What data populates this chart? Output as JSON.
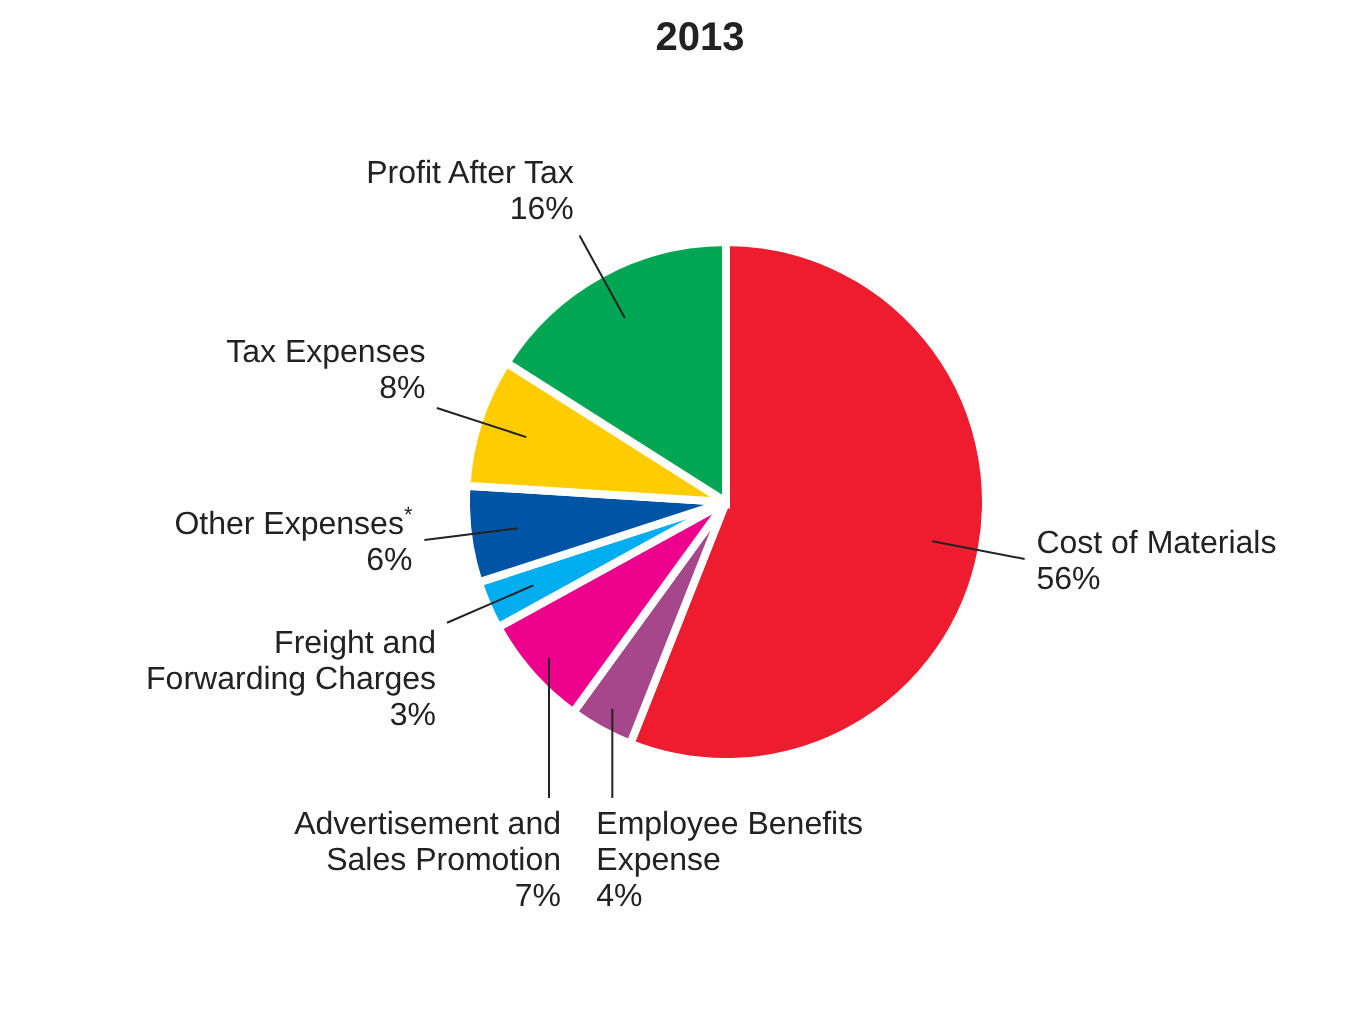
{
  "chart_data": {
    "type": "pie",
    "title": "2013",
    "categories": [
      "Cost of Materials",
      "Employee Benefits Expense",
      "Advertisement and Sales Promotion",
      "Freight and Forwarding Charges",
      "Other Expenses$^{*}$",
      "Tax Expenses",
      "Profit After Tax"
    ],
    "values": [
      56,
      4,
      7,
      3,
      6,
      8,
      16
    ],
    "value_labels": [
      "56%",
      "4%",
      "7%",
      "3%",
      "6%",
      "8%",
      "16%"
    ],
    "colors": [
      "#ed1c2e",
      "#a5478a",
      "#ec008c",
      "#00aeef",
      "#0054a6",
      "#ffcc00",
      "#00a651"
    ]
  }
}
